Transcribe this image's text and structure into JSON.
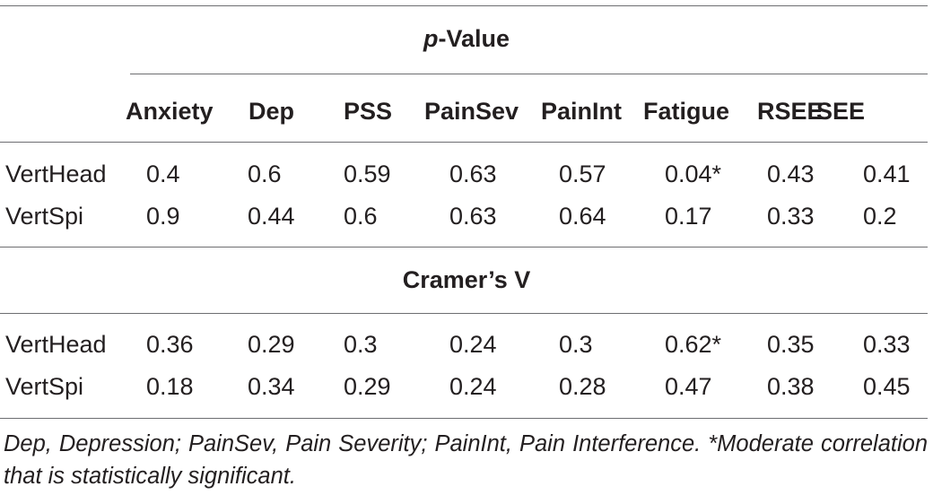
{
  "table": {
    "pvalue_header": {
      "prefix": "p",
      "suffix": "-Value"
    },
    "cramers_header": "Cramer’s V",
    "columns": [
      "Anxiety",
      "Dep",
      "PSS",
      "PainSev",
      "PainInt",
      "Fatigue",
      "RSEE",
      "SEE"
    ],
    "pvalue_rows": [
      {
        "label": "VertHead",
        "values": [
          "0.4",
          "0.6",
          "0.59",
          "0.63",
          "0.57",
          "0.04*",
          "0.43",
          "0.41"
        ]
      },
      {
        "label": "VertSpi",
        "values": [
          "0.9",
          "0.44",
          "0.6",
          "0.63",
          "0.64",
          "0.17",
          "0.33",
          "0.2"
        ]
      }
    ],
    "cramers_rows": [
      {
        "label": "VertHead",
        "values": [
          "0.36",
          "0.29",
          "0.3",
          "0.24",
          "0.3",
          "0.62*",
          "0.35",
          "0.33"
        ]
      },
      {
        "label": "VertSpi",
        "values": [
          "0.18",
          "0.34",
          "0.29",
          "0.24",
          "0.28",
          "0.47",
          "0.38",
          "0.45"
        ]
      }
    ],
    "footnote": "Dep, Depression; PainSev, Pain Severity; PainInt, Pain Interference. *Moderate correlation that is statistically significant."
  }
}
